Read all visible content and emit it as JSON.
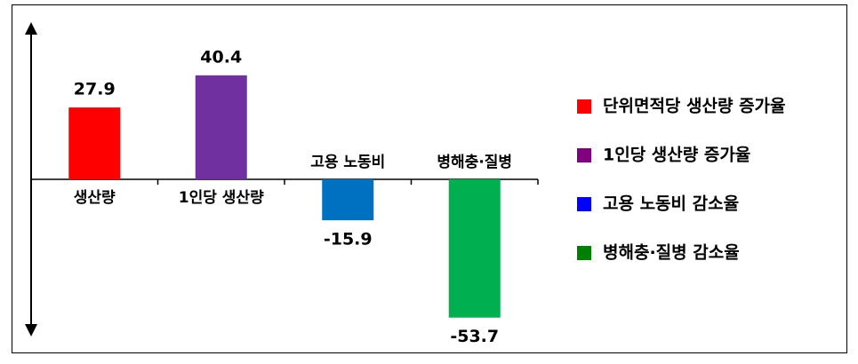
{
  "chart_data": {
    "type": "bar",
    "categories": [
      "생산량",
      "1인당 생산량",
      "고용 노동비",
      "병해충·질병"
    ],
    "values": [
      27.9,
      40.4,
      -15.9,
      -53.7
    ],
    "colors": [
      "#ff0000",
      "#7030a0",
      "#0070c0",
      "#00b050"
    ],
    "ylim": [
      -60,
      60
    ],
    "legend": [
      {
        "name": "단위면적당 생산량 증가율",
        "color": "#ff0000"
      },
      {
        "name": "1인당 생산량 증가율",
        "color": "#800080"
      },
      {
        "name": "고용 노동비 감소율",
        "color": "#0000ff"
      },
      {
        "name": "병해충·질병 감소율",
        "color": "#008000"
      }
    ]
  }
}
